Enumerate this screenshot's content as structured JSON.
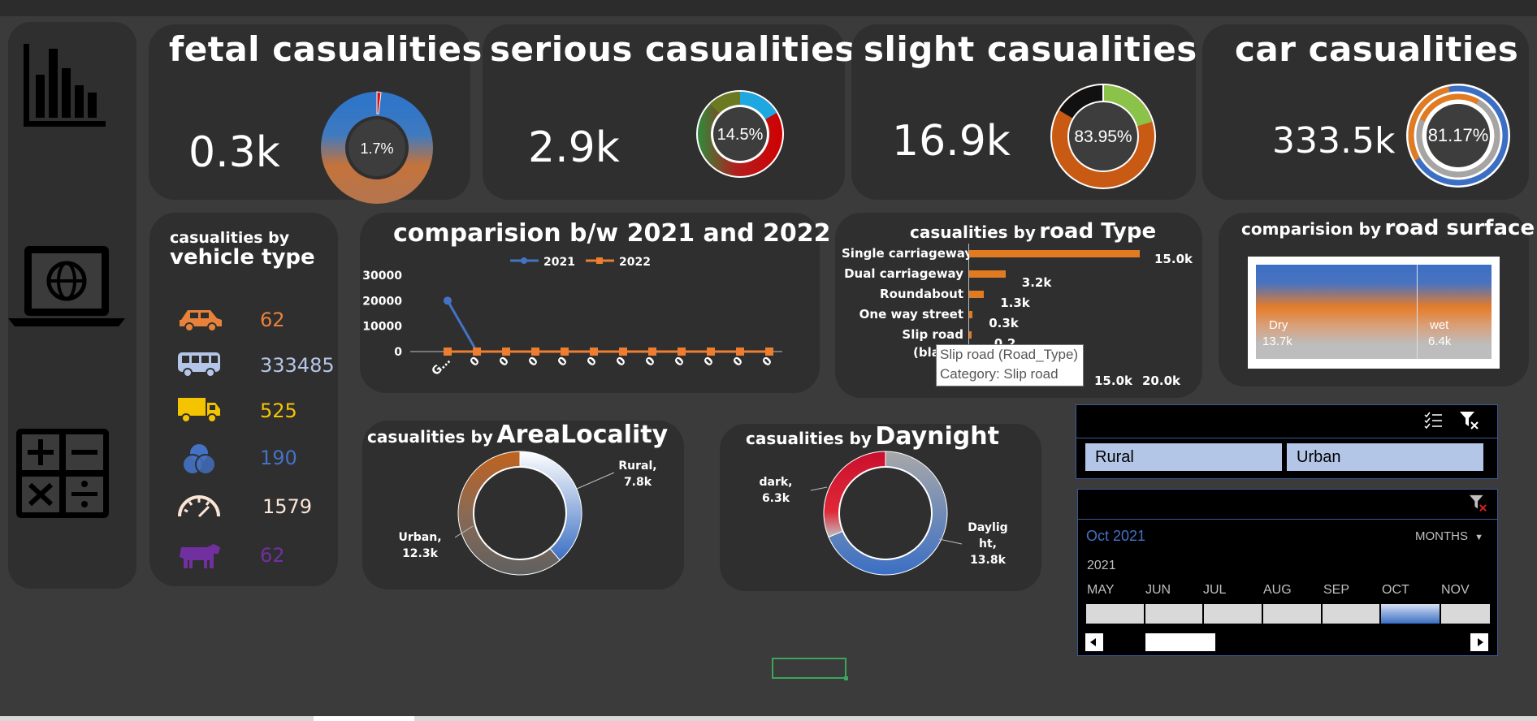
{
  "kpis": {
    "fetal": {
      "title": "fetal casualities",
      "value": "0.3k",
      "pct_label": "1.7%",
      "pct": 1.7
    },
    "serious": {
      "title": "serious casualities",
      "value": "2.9k",
      "pct_label": "14.5%",
      "pct": 14.5
    },
    "slight": {
      "title": "slight casualities",
      "value": "16.9k",
      "pct_label": "83.95%",
      "pct": 83.95
    },
    "car": {
      "title": "car casualities",
      "value": "333.5k",
      "pct_label": "81.17%",
      "pct": 81.17
    }
  },
  "sidebar": {
    "icons": [
      "bar-chart-icon",
      "laptop-globe-icon",
      "calculator-icon"
    ]
  },
  "vehicle_type": {
    "title_small": "casualities by",
    "title_big": "vehicle type",
    "items": [
      {
        "icon": "car-icon",
        "value": "62",
        "color": "#e8823a"
      },
      {
        "icon": "bus-icon",
        "value": "333485",
        "color": "#b4c6e7"
      },
      {
        "icon": "truck-icon",
        "value": "525",
        "color": "#f5c400"
      },
      {
        "icon": "venn-icon",
        "value": "190",
        "color": "#4472c4"
      },
      {
        "icon": "speedometer-icon",
        "value": "1579",
        "color": "#fbe5d6"
      },
      {
        "icon": "cow-icon",
        "value": "62",
        "color": "#7030a0"
      }
    ]
  },
  "comparison_chart": {
    "title": "comparision b/w 2021 and 2022",
    "legend": [
      "2021",
      "2022"
    ]
  },
  "road_type": {
    "title_small": "casualities by",
    "title_big": "road Type",
    "tooltip": {
      "line1": "Slip road (Road_Type)",
      "line2": "Category: Slip road"
    },
    "hidden_label_fragment": "(bla",
    "axis_ticks": [
      "15.0k",
      "20.0k"
    ]
  },
  "road_surface": {
    "title_small": "comparision by",
    "title_big": "road surface",
    "dry": {
      "label": "Dry",
      "value": "13.7k",
      "num": 13.7
    },
    "wet": {
      "label": "wet",
      "value": "6.4k",
      "num": 6.4
    }
  },
  "area_locality": {
    "title_small": "casualities by",
    "title_big": "AreaLocality",
    "rural": {
      "label": "Rural,",
      "value": "7.8k",
      "num": 7.8
    },
    "urban": {
      "label": "Urban,",
      "value": "12.3k",
      "num": 12.3
    }
  },
  "daynight": {
    "title_small": "casualities by",
    "title_big": "Daynight",
    "dark": {
      "label": "dark,",
      "value": "6.3k",
      "num": 6.3
    },
    "daylight": {
      "label1": "Daylig",
      "label2": "ht,",
      "value": "13.8k",
      "num": 13.8
    }
  },
  "slicer": {
    "items": [
      "Rural",
      "Urban"
    ]
  },
  "timeline": {
    "selected": "Oct 2021",
    "level": "MONTHS",
    "year": "2021",
    "months": [
      "MAY",
      "JUN",
      "JUL",
      "AUG",
      "SEP",
      "OCT",
      "NOV"
    ],
    "selected_month": "OCT"
  },
  "chart_data": [
    {
      "type": "line",
      "title": "comparision b/w 2021 and 2022",
      "categories": [
        "G…",
        "0",
        "0",
        "0",
        "0",
        "0",
        "0",
        "0",
        "0",
        "0",
        "0",
        "0"
      ],
      "series": [
        {
          "name": "2021",
          "values": [
            20000,
            0,
            null,
            null,
            null,
            null,
            null,
            null,
            null,
            null,
            null,
            null
          ]
        },
        {
          "name": "2022",
          "values": [
            0,
            0,
            0,
            0,
            0,
            0,
            0,
            0,
            0,
            0,
            0,
            0
          ]
        }
      ],
      "ylim": [
        0,
        30000
      ],
      "yticks": [
        "30000",
        "20000",
        "10000",
        "0"
      ],
      "colors": {
        "2021": "#4472c4",
        "2022": "#ed7d31"
      },
      "legend": "top"
    },
    {
      "type": "bar",
      "orientation": "horizontal",
      "title": "casualities by road Type",
      "categories": [
        "Single carriageway",
        "Dual carriageway",
        "Roundabout",
        "One way street",
        "Slip road"
      ],
      "values": [
        15.0,
        3.2,
        1.3,
        0.3,
        0.2
      ],
      "labels": [
        "15.0k",
        "3.2k",
        "1.3k",
        "0.3k",
        "0.2"
      ],
      "xlim": [
        0,
        20
      ],
      "color": "#e07b22"
    },
    {
      "type": "pie",
      "title": "casualities by AreaLocality",
      "categories": [
        "Rural",
        "Urban"
      ],
      "values": [
        7.8,
        12.3
      ]
    },
    {
      "type": "pie",
      "title": "casualities by Daynight",
      "categories": [
        "dark",
        "Daylight"
      ],
      "values": [
        6.3,
        13.8
      ]
    }
  ]
}
